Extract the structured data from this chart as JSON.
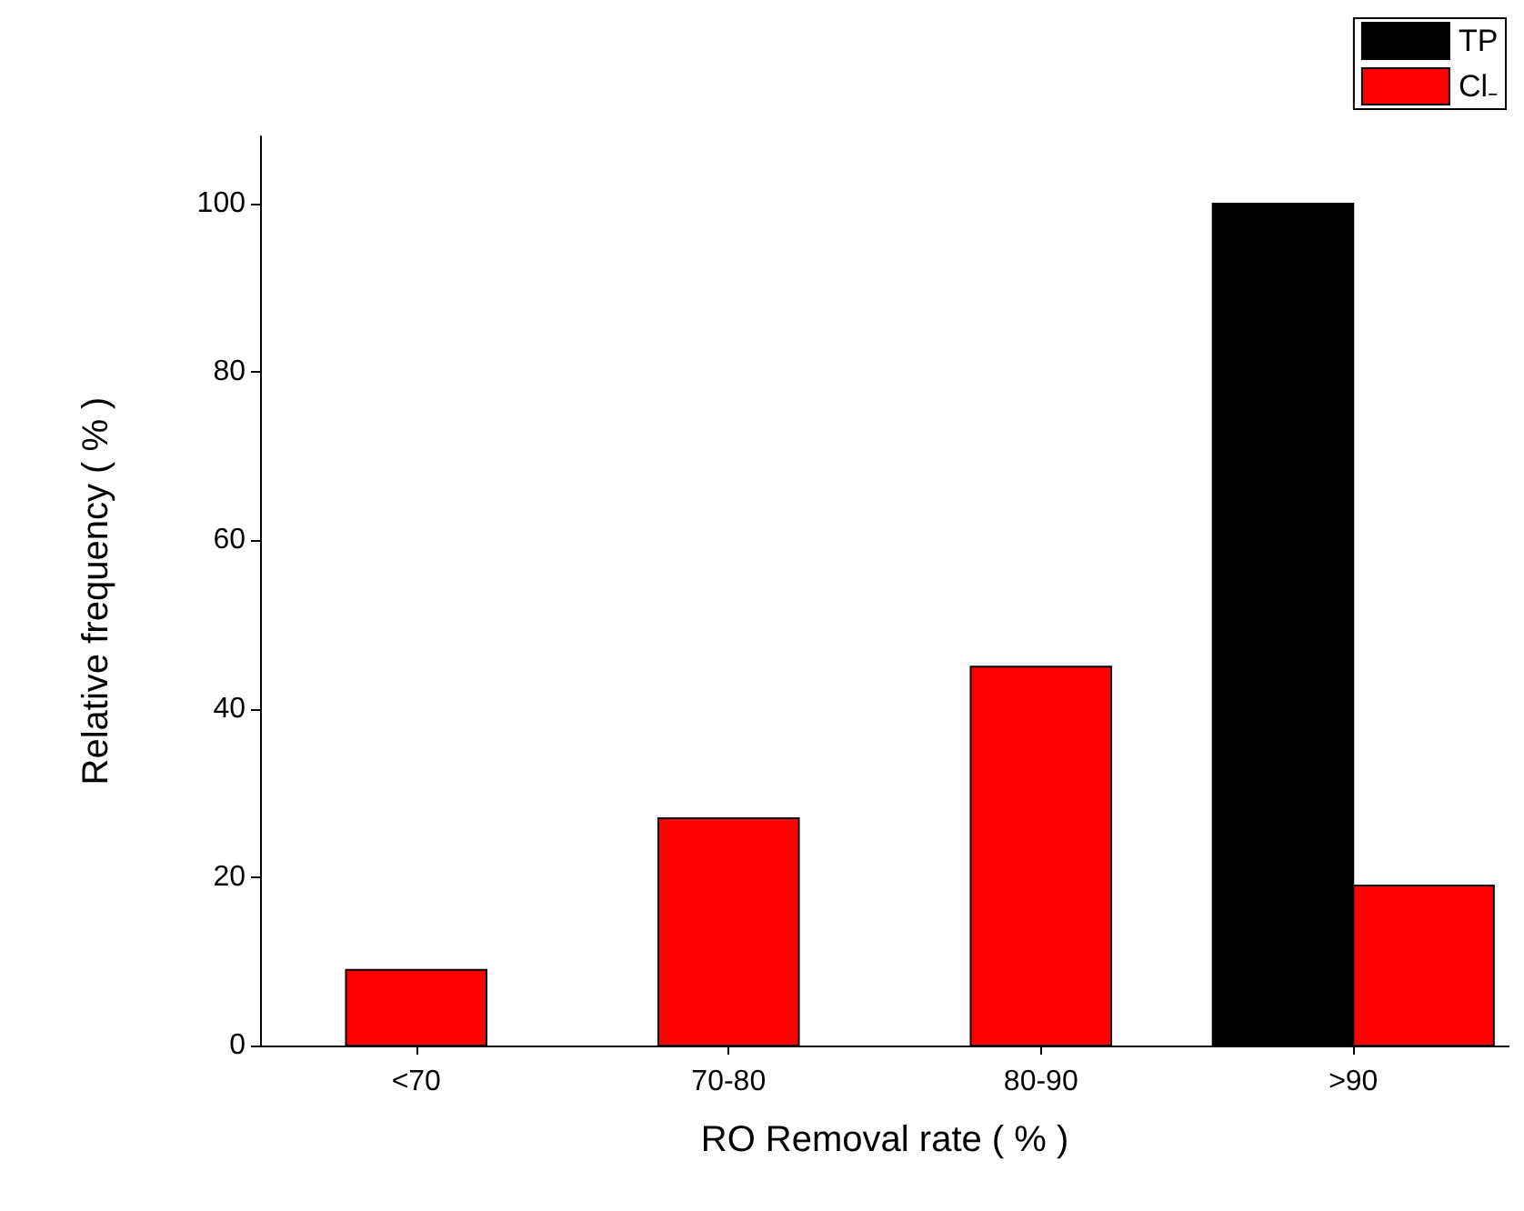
{
  "chart_data": {
    "type": "bar",
    "xlabel": "RO Removal rate ( % )",
    "ylabel": "Relative frequency ( % )",
    "categories": [
      "<70",
      "70-80",
      "80-90",
      ">90"
    ],
    "series": [
      {
        "name": "TP",
        "color": "#000000",
        "values": [
          null,
          null,
          null,
          100
        ]
      },
      {
        "name": "Cl₋",
        "color": "#ff0000",
        "values": [
          9,
          27,
          45,
          19
        ]
      }
    ],
    "ylim": [
      0,
      108
    ],
    "yticks": [
      0,
      20,
      40,
      60,
      80,
      100
    ],
    "grid": false,
    "legend": "top right"
  }
}
